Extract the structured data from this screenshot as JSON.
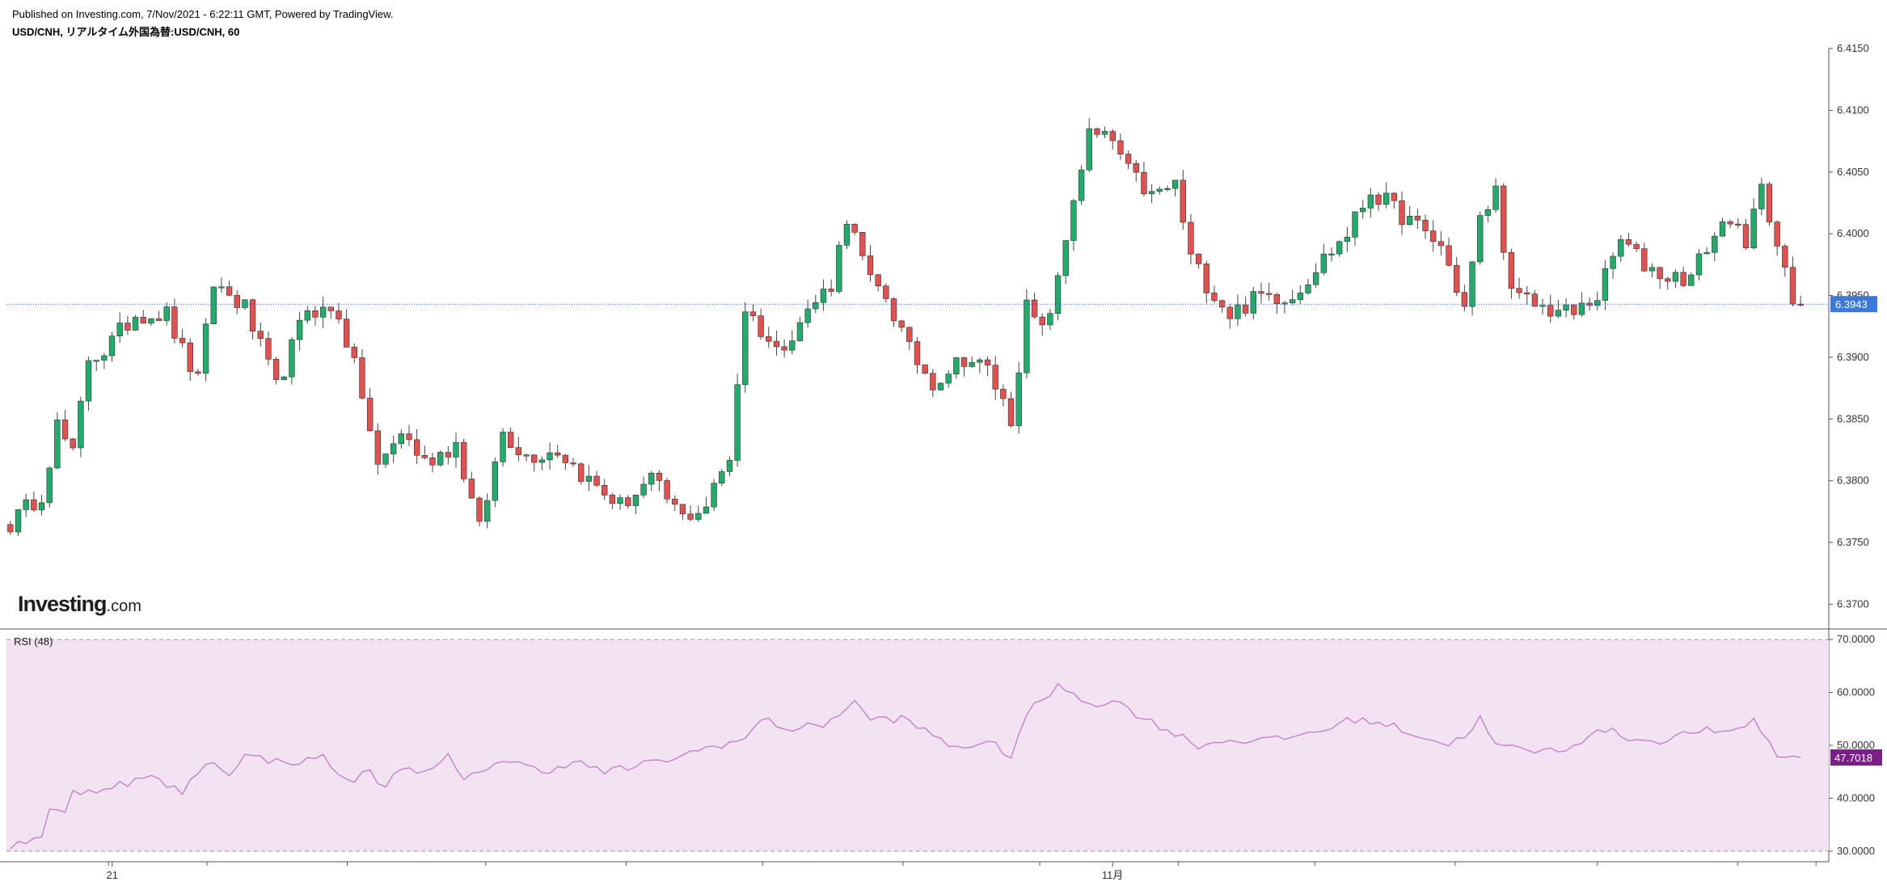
{
  "header": {
    "published": "Published on Investing.com, 7/Nov/2021 - 6:22:11 GMT, Powered by TradingView.",
    "symbol": "USD/CNH, リアルタイム外国為替:USD/CNH, 60"
  },
  "logo": {
    "main": "Investing",
    "suffix": ".com"
  },
  "colors": {
    "up": "#22ab6a",
    "down": "#e0514f",
    "wick": "#444444",
    "price_line": "#2962ff",
    "price_badge": "#3c78d8",
    "rsi_line": "#c27bc7",
    "rsi_band": "#f1e3f1",
    "rsi_badge": "#7b1e86",
    "axis": "#555555"
  },
  "chart_data": [
    {
      "type": "candlestick",
      "title": "USD/CNH, リアルタイム外国為替:USD/CNH, 60",
      "ylim": [
        6.368,
        6.415
      ],
      "y_ticks": [
        "6.4150",
        "6.4100",
        "6.4050",
        "6.4000",
        "6.3950",
        "6.3900",
        "6.3850",
        "6.3800",
        "6.3750",
        "6.3700"
      ],
      "x_ticks": [
        {
          "label": "21",
          "pos": 0.058
        },
        {
          "label": "11月",
          "pos": 0.607
        }
      ],
      "last_price": "6.3943",
      "candle_count": 230,
      "anchors": [
        [
          0,
          6.3765
        ],
        [
          4,
          6.379
        ],
        [
          6,
          6.3845
        ],
        [
          8,
          6.382
        ],
        [
          10,
          6.39
        ],
        [
          12,
          6.3905
        ],
        [
          16,
          6.3935
        ],
        [
          20,
          6.3935
        ],
        [
          22,
          6.3905
        ],
        [
          24,
          6.388
        ],
        [
          26,
          6.396
        ],
        [
          30,
          6.394
        ],
        [
          34,
          6.3875
        ],
        [
          38,
          6.394
        ],
        [
          42,
          6.3935
        ],
        [
          45,
          6.387
        ],
        [
          47,
          6.381
        ],
        [
          50,
          6.384
        ],
        [
          53,
          6.3815
        ],
        [
          57,
          6.383
        ],
        [
          60,
          6.376
        ],
        [
          63,
          6.384
        ],
        [
          66,
          6.382
        ],
        [
          70,
          6.3825
        ],
        [
          74,
          6.38
        ],
        [
          78,
          6.378
        ],
        [
          82,
          6.38
        ],
        [
          86,
          6.377
        ],
        [
          89,
          6.378
        ],
        [
          92,
          6.382
        ],
        [
          94,
          6.394
        ],
        [
          98,
          6.3905
        ],
        [
          103,
          6.3945
        ],
        [
          105,
          6.396
        ],
        [
          107,
          6.4015
        ],
        [
          110,
          6.396
        ],
        [
          112,
          6.395
        ],
        [
          115,
          6.3905
        ],
        [
          118,
          6.388
        ],
        [
          122,
          6.39
        ],
        [
          125,
          6.389
        ],
        [
          128,
          6.385
        ],
        [
          130,
          6.394
        ],
        [
          132,
          6.392
        ],
        [
          134,
          6.396
        ],
        [
          136,
          6.403
        ],
        [
          138,
          6.408
        ],
        [
          141,
          6.4075
        ],
        [
          143,
          6.405
        ],
        [
          146,
          6.403
        ],
        [
          149,
          6.404
        ],
        [
          151,
          6.398
        ],
        [
          153,
          6.396
        ],
        [
          156,
          6.3935
        ],
        [
          160,
          6.395
        ],
        [
          164,
          6.395
        ],
        [
          168,
          6.398
        ],
        [
          171,
          6.4
        ],
        [
          174,
          6.4035
        ],
        [
          177,
          6.402
        ],
        [
          180,
          6.4005
        ],
        [
          183,
          6.399
        ],
        [
          186,
          6.394
        ],
        [
          188,
          6.401
        ],
        [
          190,
          6.4035
        ],
        [
          192,
          6.395
        ],
        [
          196,
          6.394
        ],
        [
          200,
          6.3935
        ],
        [
          203,
          6.395
        ],
        [
          206,
          6.3995
        ],
        [
          209,
          6.3975
        ],
        [
          212,
          6.3965
        ],
        [
          215,
          6.3965
        ],
        [
          217,
          6.399
        ],
        [
          220,
          6.4015
        ],
        [
          222,
          6.3985
        ],
        [
          224,
          6.4045
        ],
        [
          226,
          6.399
        ],
        [
          228,
          6.3943
        ],
        [
          229,
          6.3943
        ]
      ]
    },
    {
      "type": "line",
      "title": "RSI (48)",
      "ylim": [
        28,
        72
      ],
      "y_ticks": [
        "70.0000",
        "60.0000",
        "50.0000",
        "40.0000",
        "30.0000"
      ],
      "bands": [
        70,
        30
      ],
      "last_value": "47.7018",
      "anchors": [
        [
          0,
          31
        ],
        [
          4,
          33
        ],
        [
          5,
          38
        ],
        [
          7,
          37
        ],
        [
          8,
          41
        ],
        [
          12,
          42
        ],
        [
          18,
          44
        ],
        [
          22,
          41
        ],
        [
          25,
          47
        ],
        [
          28,
          45
        ],
        [
          30,
          48
        ],
        [
          34,
          47
        ],
        [
          38,
          47
        ],
        [
          40,
          48
        ],
        [
          43,
          43
        ],
        [
          46,
          45
        ],
        [
          48,
          42
        ],
        [
          50,
          46
        ],
        [
          54,
          45
        ],
        [
          56,
          48
        ],
        [
          58,
          43
        ],
        [
          62,
          47
        ],
        [
          64,
          47
        ],
        [
          68,
          45
        ],
        [
          72,
          47
        ],
        [
          76,
          45
        ],
        [
          80,
          46
        ],
        [
          86,
          48
        ],
        [
          90,
          50
        ],
        [
          94,
          51
        ],
        [
          96,
          55
        ],
        [
          100,
          53
        ],
        [
          104,
          54
        ],
        [
          108,
          58
        ],
        [
          110,
          55
        ],
        [
          114,
          55
        ],
        [
          118,
          52
        ],
        [
          120,
          50
        ],
        [
          126,
          50
        ],
        [
          128,
          48
        ],
        [
          130,
          56
        ],
        [
          134,
          61
        ],
        [
          136,
          60
        ],
        [
          138,
          58
        ],
        [
          142,
          58
        ],
        [
          145,
          55
        ],
        [
          148,
          53
        ],
        [
          152,
          50
        ],
        [
          156,
          51
        ],
        [
          162,
          51
        ],
        [
          168,
          53
        ],
        [
          172,
          55
        ],
        [
          176,
          54
        ],
        [
          180,
          52
        ],
        [
          184,
          50
        ],
        [
          186,
          52
        ],
        [
          188,
          55
        ],
        [
          190,
          50
        ],
        [
          194,
          49
        ],
        [
          198,
          49
        ],
        [
          204,
          53
        ],
        [
          208,
          51
        ],
        [
          212,
          51
        ],
        [
          216,
          53
        ],
        [
          220,
          52
        ],
        [
          223,
          55
        ],
        [
          226,
          48
        ],
        [
          229,
          47.7
        ]
      ]
    }
  ]
}
